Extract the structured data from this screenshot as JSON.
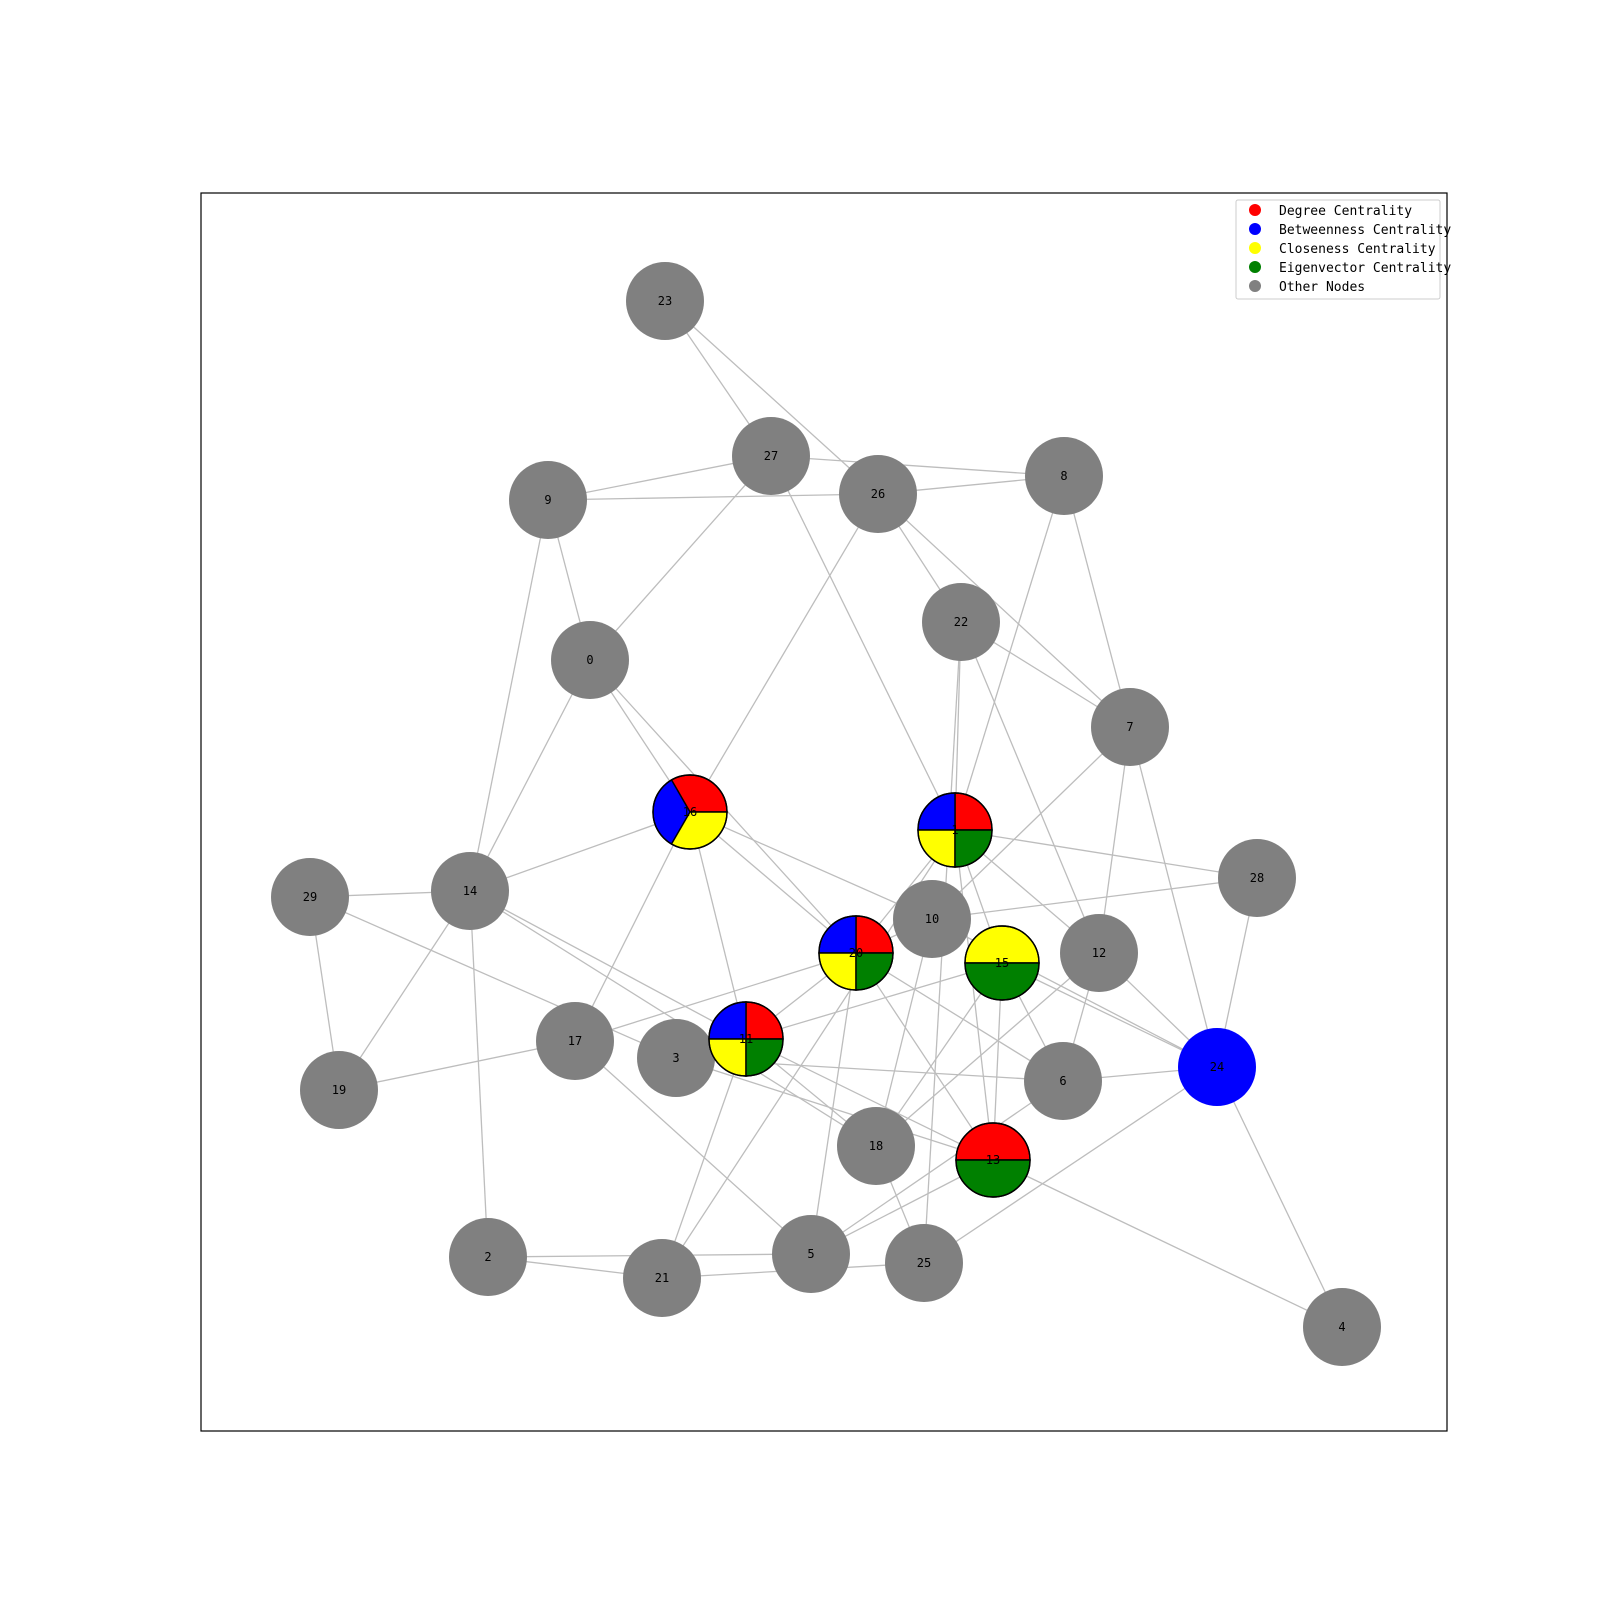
{
  "legend": [
    {
      "label": "Degree Centrality",
      "color": "#ff0000"
    },
    {
      "label": "Betweenness Centrality",
      "color": "#0000ff"
    },
    {
      "label": "Closeness Centrality",
      "color": "#ffff00"
    },
    {
      "label": "Eigenvector Centrality",
      "color": "#008000"
    },
    {
      "label": "Other Nodes",
      "color": "#808080"
    }
  ],
  "colors": {
    "degree": "#ff0000",
    "betweenness": "#0000ff",
    "closeness": "#ffff00",
    "eigenvector": "#008000",
    "other": "#808080",
    "edge": "#bdbdbd"
  },
  "nodes": [
    {
      "id": "0",
      "centralities": []
    },
    {
      "id": "1",
      "centralities": [
        "degree",
        "betweenness",
        "closeness",
        "eigenvector"
      ]
    },
    {
      "id": "2",
      "centralities": []
    },
    {
      "id": "3",
      "centralities": []
    },
    {
      "id": "4",
      "centralities": []
    },
    {
      "id": "5",
      "centralities": []
    },
    {
      "id": "6",
      "centralities": []
    },
    {
      "id": "7",
      "centralities": []
    },
    {
      "id": "8",
      "centralities": []
    },
    {
      "id": "9",
      "centralities": []
    },
    {
      "id": "10",
      "centralities": []
    },
    {
      "id": "11",
      "centralities": [
        "degree",
        "betweenness",
        "closeness",
        "eigenvector"
      ]
    },
    {
      "id": "12",
      "centralities": []
    },
    {
      "id": "13",
      "centralities": [
        "degree",
        "eigenvector"
      ]
    },
    {
      "id": "14",
      "centralities": []
    },
    {
      "id": "15",
      "centralities": [
        "closeness",
        "eigenvector"
      ]
    },
    {
      "id": "16",
      "centralities": [
        "degree",
        "betweenness",
        "closeness"
      ]
    },
    {
      "id": "17",
      "centralities": []
    },
    {
      "id": "18",
      "centralities": []
    },
    {
      "id": "19",
      "centralities": []
    },
    {
      "id": "20",
      "centralities": [
        "degree",
        "betweenness",
        "closeness",
        "eigenvector"
      ]
    },
    {
      "id": "21",
      "centralities": []
    },
    {
      "id": "22",
      "centralities": []
    },
    {
      "id": "23",
      "centralities": []
    },
    {
      "id": "24",
      "centralities": [
        "betweenness"
      ]
    },
    {
      "id": "25",
      "centralities": []
    },
    {
      "id": "26",
      "centralities": []
    },
    {
      "id": "27",
      "centralities": []
    },
    {
      "id": "28",
      "centralities": []
    },
    {
      "id": "29",
      "centralities": []
    }
  ],
  "edges": [
    [
      "23",
      "27"
    ],
    [
      "23",
      "26"
    ],
    [
      "27",
      "9"
    ],
    [
      "27",
      "8"
    ],
    [
      "27",
      "0"
    ],
    [
      "27",
      "1"
    ],
    [
      "9",
      "26"
    ],
    [
      "9",
      "0"
    ],
    [
      "9",
      "14"
    ],
    [
      "26",
      "8"
    ],
    [
      "26",
      "22"
    ],
    [
      "26",
      "7"
    ],
    [
      "26",
      "16"
    ],
    [
      "8",
      "1"
    ],
    [
      "8",
      "7"
    ],
    [
      "0",
      "14"
    ],
    [
      "0",
      "16"
    ],
    [
      "0",
      "20"
    ],
    [
      "22",
      "7"
    ],
    [
      "22",
      "1"
    ],
    [
      "22",
      "12"
    ],
    [
      "22",
      "25"
    ],
    [
      "7",
      "10"
    ],
    [
      "7",
      "12"
    ],
    [
      "7",
      "24"
    ],
    [
      "16",
      "14"
    ],
    [
      "16",
      "17"
    ],
    [
      "16",
      "11"
    ],
    [
      "16",
      "20"
    ],
    [
      "16",
      "10"
    ],
    [
      "1",
      "28"
    ],
    [
      "1",
      "13"
    ],
    [
      "1",
      "12"
    ],
    [
      "1",
      "15"
    ],
    [
      "1",
      "20"
    ],
    [
      "1",
      "21"
    ],
    [
      "29",
      "14"
    ],
    [
      "29",
      "19"
    ],
    [
      "29",
      "3"
    ],
    [
      "14",
      "19"
    ],
    [
      "14",
      "2"
    ],
    [
      "14",
      "11"
    ],
    [
      "14",
      "18"
    ],
    [
      "10",
      "28"
    ],
    [
      "10",
      "18"
    ],
    [
      "10",
      "20"
    ],
    [
      "10",
      "24"
    ],
    [
      "20",
      "11"
    ],
    [
      "20",
      "5"
    ],
    [
      "20",
      "13"
    ],
    [
      "20",
      "6"
    ],
    [
      "15",
      "11"
    ],
    [
      "15",
      "13"
    ],
    [
      "15",
      "18"
    ],
    [
      "15",
      "24"
    ],
    [
      "15",
      "6"
    ],
    [
      "12",
      "6"
    ],
    [
      "12",
      "24"
    ],
    [
      "12",
      "18"
    ],
    [
      "28",
      "24"
    ],
    [
      "24",
      "6"
    ],
    [
      "24",
      "4"
    ],
    [
      "24",
      "25"
    ],
    [
      "17",
      "19"
    ],
    [
      "17",
      "20"
    ],
    [
      "17",
      "5"
    ],
    [
      "3",
      "6"
    ],
    [
      "11",
      "18"
    ],
    [
      "11",
      "21"
    ],
    [
      "11",
      "13"
    ],
    [
      "3",
      "13"
    ],
    [
      "6",
      "5"
    ],
    [
      "13",
      "5"
    ],
    [
      "13",
      "4"
    ],
    [
      "18",
      "25"
    ],
    [
      "2",
      "21"
    ],
    [
      "2",
      "5"
    ],
    [
      "21",
      "25"
    ]
  ]
}
